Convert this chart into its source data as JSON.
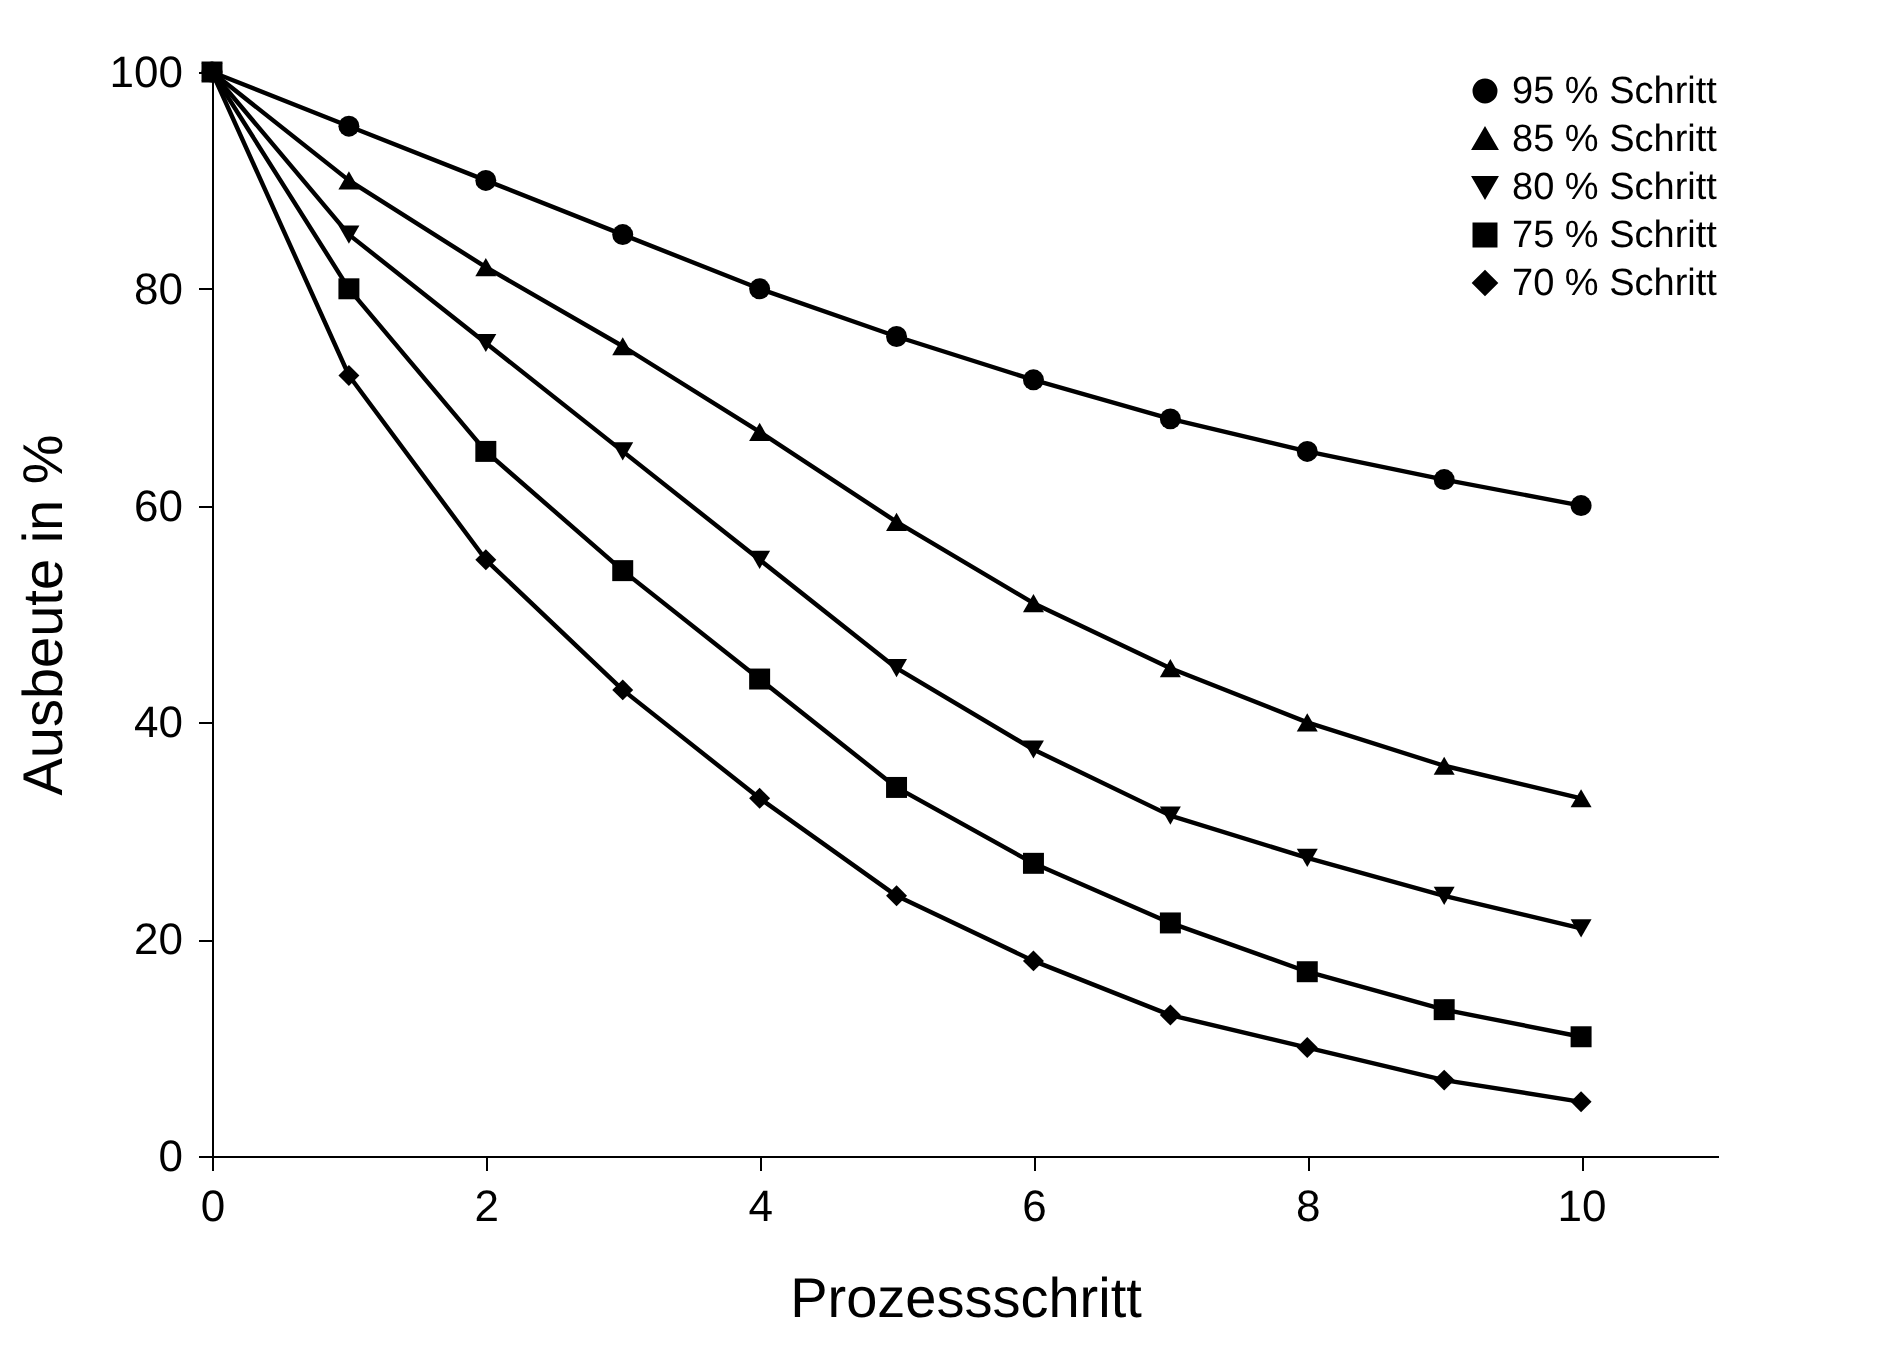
{
  "chart_data": {
    "type": "line",
    "xlabel": "Prozessschritt",
    "ylabel": "Ausbeute in %",
    "x": [
      0,
      1,
      2,
      3,
      4,
      5,
      6,
      7,
      8,
      9,
      10
    ],
    "xlim": [
      0,
      11
    ],
    "xticks": [
      0,
      2,
      4,
      6,
      8,
      10
    ],
    "ylim": [
      0,
      100
    ],
    "yticks": [
      0,
      20,
      40,
      60,
      80,
      100
    ],
    "grid": false,
    "legend": "top right",
    "line_style": "solid",
    "series": [
      {
        "name": "95 % Schritt",
        "color": "#000000",
        "marker": "circle",
        "values": [
          100,
          95,
          90,
          85,
          80,
          75.6,
          71.6,
          68,
          65,
          62.4,
          60
        ]
      },
      {
        "name": "85 % Schritt",
        "color": "#000000",
        "marker": "triangle",
        "values": [
          100,
          90,
          82,
          74.7,
          66.8,
          58.5,
          51,
          45,
          40,
          36,
          33
        ]
      },
      {
        "name": "80 % Schritt",
        "color": "#000000",
        "marker": "triangle-down",
        "values": [
          100,
          85,
          75,
          65,
          55,
          45,
          37.5,
          31.4,
          27.5,
          24,
          21
        ]
      },
      {
        "name": "75 % Schritt",
        "color": "#000000",
        "marker": "square",
        "values": [
          100,
          80,
          65,
          54,
          44,
          34,
          27,
          21.5,
          17,
          13.5,
          11
        ]
      },
      {
        "name": "70 % Schritt",
        "color": "#000000",
        "marker": "diamond",
        "values": [
          100,
          72,
          55,
          43,
          33,
          24,
          18,
          13,
          10,
          7,
          5
        ]
      }
    ]
  }
}
